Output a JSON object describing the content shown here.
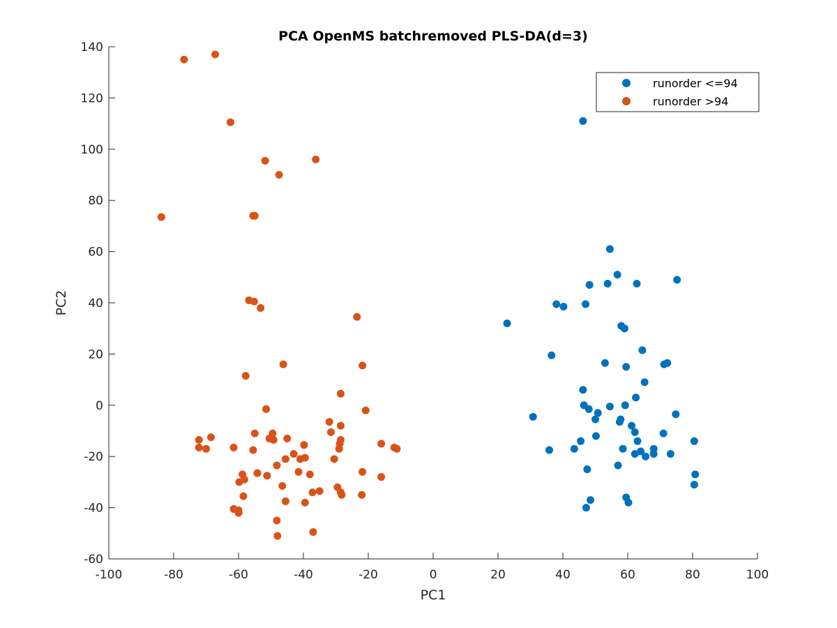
{
  "chart_data": {
    "type": "scatter",
    "title": "PCA OpenMS batchremoved PLS-DA(d=3)",
    "xlabel": "PC1",
    "ylabel": "PC2",
    "xlim": [
      -100,
      100
    ],
    "ylim": [
      -60,
      140
    ],
    "xticks": [
      -100,
      -80,
      -60,
      -40,
      -20,
      0,
      20,
      40,
      60,
      80,
      100
    ],
    "yticks": [
      -60,
      -40,
      -20,
      0,
      20,
      40,
      60,
      80,
      100,
      120,
      140
    ],
    "grid": false,
    "legend_position": "top-right",
    "series": [
      {
        "name": "runorder <=94",
        "color": "#0072BD",
        "points": [
          [
            46.2,
            111
          ],
          [
            54.5,
            61
          ],
          [
            56.8,
            51
          ],
          [
            75.2,
            49
          ],
          [
            48.2,
            47
          ],
          [
            53.8,
            47.5
          ],
          [
            62.8,
            47.5
          ],
          [
            38,
            39.5
          ],
          [
            40.2,
            38.5
          ],
          [
            47,
            39.5
          ],
          [
            58,
            31
          ],
          [
            59,
            30
          ],
          [
            22.8,
            32
          ],
          [
            36.5,
            19.5
          ],
          [
            64.5,
            21.5
          ],
          [
            53,
            16.5
          ],
          [
            59.5,
            15
          ],
          [
            71.2,
            16
          ],
          [
            72.2,
            16.5
          ],
          [
            65.2,
            9
          ],
          [
            46.2,
            6
          ],
          [
            62.5,
            3
          ],
          [
            46.5,
            0
          ],
          [
            48,
            -1.5
          ],
          [
            54.5,
            -0.5
          ],
          [
            59.2,
            0
          ],
          [
            30.8,
            -4.5
          ],
          [
            50.8,
            -3
          ],
          [
            74.8,
            -3.5
          ],
          [
            57.8,
            -5.5
          ],
          [
            57.5,
            -6.5
          ],
          [
            50,
            -5.5
          ],
          [
            61.2,
            -8
          ],
          [
            62.2,
            -10.5
          ],
          [
            71,
            -11
          ],
          [
            45.5,
            -14
          ],
          [
            63,
            -14
          ],
          [
            80.5,
            -14
          ],
          [
            43.5,
            -17
          ],
          [
            58.5,
            -17
          ],
          [
            35.8,
            -17.5
          ],
          [
            50.2,
            -12
          ],
          [
            64,
            -18
          ],
          [
            68,
            -17
          ],
          [
            62.2,
            -19
          ],
          [
            65.5,
            -20
          ],
          [
            68,
            -19
          ],
          [
            73.2,
            -19
          ],
          [
            57,
            -23.5
          ],
          [
            47.5,
            -25
          ],
          [
            80.8,
            -27
          ],
          [
            80.5,
            -31
          ],
          [
            59.5,
            -36
          ],
          [
            48.5,
            -37
          ],
          [
            60.2,
            -38
          ],
          [
            47.2,
            -40
          ]
        ]
      },
      {
        "name": "runorder >94",
        "color": "#D95319",
        "points": [
          [
            -67.2,
            137
          ],
          [
            -76.8,
            135
          ],
          [
            -62.5,
            110.5
          ],
          [
            -51.8,
            95.5
          ],
          [
            -36.2,
            96
          ],
          [
            -47.5,
            90
          ],
          [
            -83.8,
            73.5
          ],
          [
            -55.5,
            74
          ],
          [
            -55,
            74
          ],
          [
            -56.8,
            41
          ],
          [
            -55.2,
            40.5
          ],
          [
            -53.2,
            38
          ],
          [
            -23.5,
            34.5
          ],
          [
            -46.2,
            16
          ],
          [
            -21.8,
            15.5
          ],
          [
            -57.8,
            11.5
          ],
          [
            -28.5,
            4.5
          ],
          [
            -51.5,
            -1.5
          ],
          [
            -20.8,
            -2
          ],
          [
            -32,
            -6.5
          ],
          [
            -28.5,
            -8
          ],
          [
            -55,
            -11
          ],
          [
            -49.5,
            -11
          ],
          [
            -31.5,
            -10.5
          ],
          [
            -50.5,
            -13
          ],
          [
            -49.2,
            -13.5
          ],
          [
            -45,
            -13
          ],
          [
            -28.5,
            -13.5
          ],
          [
            -72.2,
            -13.5
          ],
          [
            -68.5,
            -12.5
          ],
          [
            -28.8,
            -15
          ],
          [
            -39.8,
            -15.5
          ],
          [
            -16,
            -15
          ],
          [
            -72.2,
            -16.5
          ],
          [
            -70,
            -17
          ],
          [
            -61.5,
            -16.5
          ],
          [
            -55.5,
            -17.5
          ],
          [
            -12,
            -16.5
          ],
          [
            -11.2,
            -17
          ],
          [
            -43,
            -19
          ],
          [
            -29,
            -17
          ],
          [
            -39.5,
            -20.5
          ],
          [
            -41,
            -21
          ],
          [
            -45.5,
            -21
          ],
          [
            -30.5,
            -21
          ],
          [
            -48.2,
            -23.5
          ],
          [
            -54.2,
            -26.5
          ],
          [
            -58.8,
            -27
          ],
          [
            -51.2,
            -27.5
          ],
          [
            -41.5,
            -26
          ],
          [
            -38,
            -27
          ],
          [
            -21.8,
            -26
          ],
          [
            -16,
            -28
          ],
          [
            -58.2,
            -29
          ],
          [
            -59.8,
            -30
          ],
          [
            -46.5,
            -31.5
          ],
          [
            -29.5,
            -32
          ],
          [
            -35,
            -33.5
          ],
          [
            -28.5,
            -34
          ],
          [
            -28.2,
            -35
          ],
          [
            -37.2,
            -34
          ],
          [
            -22,
            -35
          ],
          [
            -58.5,
            -35.5
          ],
          [
            -45.5,
            -37.5
          ],
          [
            -39.5,
            -38
          ],
          [
            -61.5,
            -40.5
          ],
          [
            -60,
            -41
          ],
          [
            -60,
            -42
          ],
          [
            -48.2,
            -45
          ],
          [
            -37,
            -49.5
          ],
          [
            -48,
            -51
          ]
        ]
      }
    ]
  }
}
